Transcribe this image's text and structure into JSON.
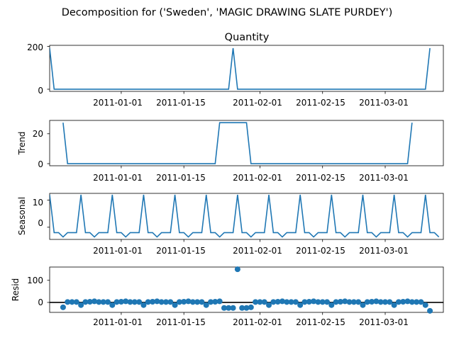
{
  "suptitle": "Decomposition for ('Sweden', 'MAGIC DRAWING SLATE PURDEY')",
  "date_ticks": [
    "2011-01-01",
    "2011-01-15",
    "2011-02-01",
    "2011-02-15",
    "2011-03-01"
  ],
  "colors": {
    "series": "#1f77b4",
    "zero_line": "#000000"
  },
  "chart_data": [
    {
      "id": "observed",
      "type": "line",
      "title": "Quantity",
      "ylabel": "",
      "x_start": "2010-12-16",
      "x_end": "2011-03-14",
      "yticks": [
        "0",
        "200"
      ],
      "ylim": [
        -10,
        205
      ],
      "values": [
        192,
        0,
        0,
        0,
        0,
        0,
        0,
        0,
        0,
        0,
        0,
        0,
        0,
        0,
        0,
        0,
        0,
        0,
        0,
        0,
        0,
        0,
        0,
        0,
        0,
        0,
        0,
        0,
        0,
        0,
        0,
        0,
        0,
        0,
        0,
        0,
        0,
        0,
        0,
        0,
        0,
        192,
        0,
        0,
        0,
        0,
        0,
        0,
        0,
        0,
        0,
        0,
        0,
        0,
        0,
        0,
        0,
        0,
        0,
        0,
        0,
        0,
        0,
        0,
        0,
        0,
        0,
        0,
        0,
        0,
        0,
        0,
        0,
        0,
        0,
        0,
        0,
        0,
        0,
        0,
        0,
        0,
        0,
        0,
        0,
        192
      ]
    },
    {
      "id": "trend",
      "type": "line",
      "title": "",
      "ylabel": "Trend",
      "x_start": "2010-12-16",
      "x_end": "2011-03-14",
      "yticks": [
        "0",
        "20"
      ],
      "ylim": [
        -1.4,
        28.9
      ],
      "values": [
        null,
        null,
        null,
        27.4,
        0,
        0,
        0,
        0,
        0,
        0,
        0,
        0,
        0,
        0,
        0,
        0,
        0,
        0,
        0,
        0,
        0,
        0,
        0,
        0,
        0,
        0,
        0,
        0,
        0,
        0,
        0,
        0,
        0,
        0,
        0,
        0,
        0,
        0,
        27.4,
        27.4,
        27.4,
        27.4,
        27.4,
        27.4,
        27.4,
        0,
        0,
        0,
        0,
        0,
        0,
        0,
        0,
        0,
        0,
        0,
        0,
        0,
        0,
        0,
        0,
        0,
        0,
        0,
        0,
        0,
        0,
        0,
        0,
        0,
        0,
        0,
        0,
        0,
        0,
        0,
        0,
        0,
        0,
        0,
        0,
        27.4,
        null,
        null,
        null
      ]
    },
    {
      "id": "seasonal",
      "type": "line",
      "title": "",
      "ylabel": "Seasonal",
      "x_start": "2010-12-16",
      "x_end": "2011-03-14",
      "yticks": [
        "0",
        "10"
      ],
      "ylim": [
        -4.5,
        12.5
      ],
      "values": [
        12,
        -2,
        -2,
        -3.6,
        -2,
        -2,
        -2,
        12,
        -2,
        -2,
        -3.6,
        -2,
        -2,
        -2,
        12,
        -2,
        -2,
        -3.6,
        -2,
        -2,
        -2,
        12,
        -2,
        -2,
        -3.6,
        -2,
        -2,
        -2,
        12,
        -2,
        -2,
        -3.6,
        -2,
        -2,
        -2,
        12,
        -2,
        -2,
        -3.6,
        -2,
        -2,
        -2,
        12,
        -2,
        -2,
        -3.6,
        -2,
        -2,
        -2,
        12,
        -2,
        -2,
        -3.6,
        -2,
        -2,
        -2,
        12,
        -2,
        -2,
        -3.6,
        -2,
        -2,
        -2,
        12,
        -2,
        -2,
        -3.6,
        -2,
        -2,
        -2,
        12,
        -2,
        -2,
        -3.6,
        -2,
        -2,
        -2,
        12,
        -2,
        -2,
        -3.6,
        -2,
        -2,
        -2,
        12,
        -2,
        -2,
        -3.6
      ]
    },
    {
      "id": "resid",
      "type": "scatter",
      "title": "",
      "ylabel": "Resid",
      "x_start": "2010-12-16",
      "x_end": "2011-03-14",
      "yticks": [
        "0",
        "100"
      ],
      "ylim": [
        -45,
        160
      ],
      "zero_line": true,
      "values": [
        null,
        null,
        null,
        -22,
        2,
        2,
        2,
        -12,
        2,
        3,
        5,
        2,
        2,
        2,
        -12,
        2,
        3,
        5,
        2,
        2,
        2,
        -12,
        2,
        3,
        5,
        2,
        2,
        2,
        -12,
        2,
        3,
        5,
        2,
        2,
        2,
        -12,
        2,
        3,
        5,
        -25,
        -25,
        -25,
        150,
        -25,
        -25,
        -22,
        2,
        2,
        2,
        -12,
        2,
        3,
        5,
        2,
        2,
        2,
        -12,
        2,
        3,
        5,
        2,
        2,
        2,
        -12,
        2,
        3,
        5,
        2,
        2,
        2,
        -12,
        2,
        3,
        5,
        2,
        2,
        2,
        -12,
        2,
        3,
        5,
        2,
        2,
        2,
        -12,
        -38,
        null,
        null,
        null
      ]
    }
  ]
}
